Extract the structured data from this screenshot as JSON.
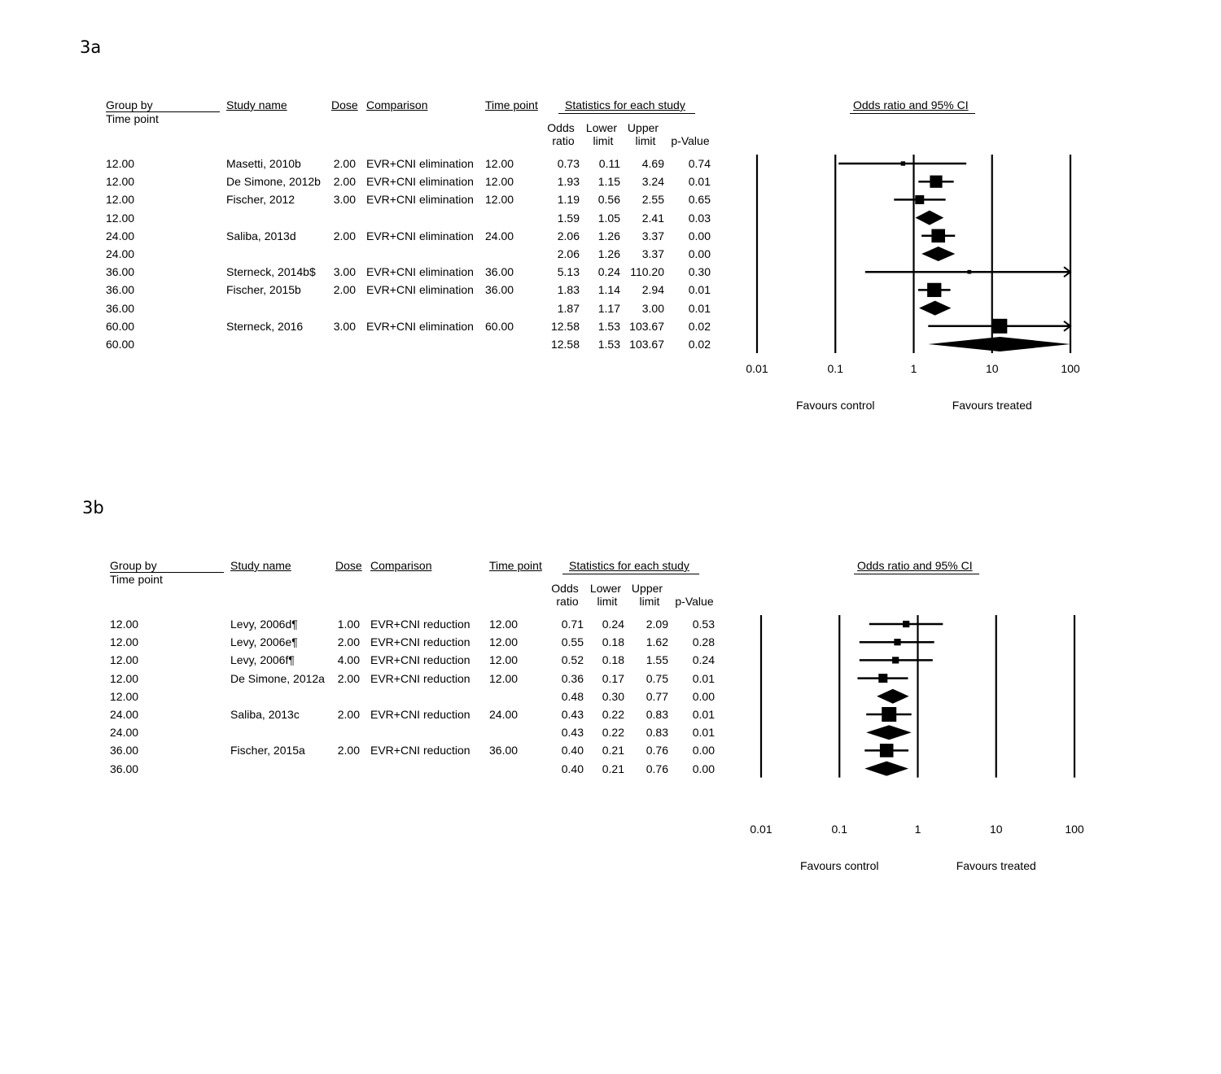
{
  "chart_data": [
    {
      "type": "forest",
      "panel_label": "3a",
      "headers": {
        "group_by": "Group by",
        "time_point_sub": "Time point",
        "study_name": "Study name",
        "dose": "Dose",
        "comparison": "Comparison",
        "time_point": "Time point",
        "stats": "Statistics for each study",
        "odds": [
          "Odds",
          "ratio"
        ],
        "lower": [
          "Lower",
          "limit"
        ],
        "upper": [
          "Upper",
          "limit"
        ],
        "pvalue": "p-Value",
        "plot_title": "Odds ratio and 95% CI"
      },
      "x_scale": "log",
      "xlim": [
        0.01,
        100
      ],
      "x_ticks": [
        "0.01",
        "0.1",
        "1",
        "10",
        "100"
      ],
      "favours_left": "Favours control",
      "favours_right": "Favours treated",
      "rows": [
        {
          "group": "12.00",
          "study": "Masetti, 2010b",
          "dose": "2.00",
          "comparison": "EVR+CNI elimination",
          "tp": "12.00",
          "or": "0.73",
          "ll": "0.11",
          "ul": "4.69",
          "p": "0.74",
          "kind": "study",
          "weight": 0.1
        },
        {
          "group": "12.00",
          "study": "De Simone, 2012b",
          "dose": "2.00",
          "comparison": "EVR+CNI elimination",
          "tp": "12.00",
          "or": "1.93",
          "ll": "1.15",
          "ul": "3.24",
          "p": "0.01",
          "kind": "study",
          "weight": 0.8
        },
        {
          "group": "12.00",
          "study": "Fischer, 2012",
          "dose": "3.00",
          "comparison": "EVR+CNI elimination",
          "tp": "12.00",
          "or": "1.19",
          "ll": "0.56",
          "ul": "2.55",
          "p": "0.65",
          "kind": "study",
          "weight": 0.5
        },
        {
          "group": "12.00",
          "study": "",
          "dose": "",
          "comparison": "",
          "tp": "",
          "or": "1.59",
          "ll": "1.05",
          "ul": "2.41",
          "p": "0.03",
          "kind": "summary"
        },
        {
          "group": "24.00",
          "study": "Saliba, 2013d",
          "dose": "2.00",
          "comparison": "EVR+CNI elimination",
          "tp": "24.00",
          "or": "2.06",
          "ll": "1.26",
          "ul": "3.37",
          "p": "0.00",
          "kind": "study",
          "weight": 0.9
        },
        {
          "group": "24.00",
          "study": "",
          "dose": "",
          "comparison": "",
          "tp": "",
          "or": "2.06",
          "ll": "1.26",
          "ul": "3.37",
          "p": "0.00",
          "kind": "summary"
        },
        {
          "group": "36.00",
          "study": "Sterneck, 2014b$",
          "dose": "3.00",
          "comparison": "EVR+CNI elimination",
          "tp": "36.00",
          "or": "5.13",
          "ll": "0.24",
          "ul": "110.20",
          "p": "0.30",
          "kind": "study",
          "weight": 0.05,
          "arrow_right": true
        },
        {
          "group": "36.00",
          "study": "Fischer, 2015b",
          "dose": "2.00",
          "comparison": "EVR+CNI elimination",
          "tp": "36.00",
          "or": "1.83",
          "ll": "1.14",
          "ul": "2.94",
          "p": "0.01",
          "kind": "study",
          "weight": 0.95
        },
        {
          "group": "36.00",
          "study": "",
          "dose": "",
          "comparison": "",
          "tp": "",
          "or": "1.87",
          "ll": "1.17",
          "ul": "3.00",
          "p": "0.01",
          "kind": "summary"
        },
        {
          "group": "60.00",
          "study": "Sterneck, 2016",
          "dose": "3.00",
          "comparison": "EVR+CNI elimination",
          "tp": "60.00",
          "or": "12.58",
          "ll": "1.53",
          "ul": "103.67",
          "p": "0.02",
          "kind": "study",
          "weight": 1.0,
          "arrow_right": true
        },
        {
          "group": "60.00",
          "study": "",
          "dose": "",
          "comparison": "",
          "tp": "",
          "or": "12.58",
          "ll": "1.53",
          "ul": "103.67",
          "p": "0.02",
          "kind": "summary",
          "clip_right": true
        }
      ]
    },
    {
      "type": "forest",
      "panel_label": "3b",
      "headers": {
        "group_by": "Group by",
        "time_point_sub": "Time point",
        "study_name": "Study name",
        "dose": "Dose",
        "comparison": "Comparison",
        "time_point": "Time point",
        "stats": "Statistics for each study",
        "odds": [
          "Odds",
          "ratio"
        ],
        "lower": [
          "Lower",
          "limit"
        ],
        "upper": [
          "Upper",
          "limit"
        ],
        "pvalue": "p-Value",
        "plot_title": "Odds ratio and 95% CI"
      },
      "x_scale": "log",
      "xlim": [
        0.01,
        100
      ],
      "x_ticks": [
        "0.01",
        "0.1",
        "1",
        "10",
        "100"
      ],
      "favours_left": "Favours control",
      "favours_right": "Favours treated",
      "rows": [
        {
          "group": "12.00",
          "study": "Levy, 2006d¶",
          "dose": "1.00",
          "comparison": "EVR+CNI reduction",
          "tp": "12.00",
          "or": "0.71",
          "ll": "0.24",
          "ul": "2.09",
          "p": "0.53",
          "kind": "study",
          "weight": 0.3
        },
        {
          "group": "12.00",
          "study": "Levy, 2006e¶",
          "dose": "2.00",
          "comparison": "EVR+CNI reduction",
          "tp": "12.00",
          "or": "0.55",
          "ll": "0.18",
          "ul": "1.62",
          "p": "0.28",
          "kind": "study",
          "weight": 0.3
        },
        {
          "group": "12.00",
          "study": "Levy, 2006f¶",
          "dose": "4.00",
          "comparison": "EVR+CNI reduction",
          "tp": "12.00",
          "or": "0.52",
          "ll": "0.18",
          "ul": "1.55",
          "p": "0.24",
          "kind": "study",
          "weight": 0.3
        },
        {
          "group": "12.00",
          "study": "De Simone, 2012a",
          "dose": "2.00",
          "comparison": "EVR+CNI reduction",
          "tp": "12.00",
          "or": "0.36",
          "ll": "0.17",
          "ul": "0.75",
          "p": "0.01",
          "kind": "study",
          "weight": 0.5
        },
        {
          "group": "12.00",
          "study": "",
          "dose": "",
          "comparison": "",
          "tp": "",
          "or": "0.48",
          "ll": "0.30",
          "ul": "0.77",
          "p": "0.00",
          "kind": "summary"
        },
        {
          "group": "24.00",
          "study": "Saliba, 2013c",
          "dose": "2.00",
          "comparison": "EVR+CNI reduction",
          "tp": "24.00",
          "or": "0.43",
          "ll": "0.22",
          "ul": "0.83",
          "p": "0.01",
          "kind": "study",
          "weight": 1.0
        },
        {
          "group": "24.00",
          "study": "",
          "dose": "",
          "comparison": "",
          "tp": "",
          "or": "0.43",
          "ll": "0.22",
          "ul": "0.83",
          "p": "0.01",
          "kind": "summary"
        },
        {
          "group": "36.00",
          "study": "Fischer, 2015a",
          "dose": "2.00",
          "comparison": "EVR+CNI reduction",
          "tp": "36.00",
          "or": "0.40",
          "ll": "0.21",
          "ul": "0.76",
          "p": "0.00",
          "kind": "study",
          "weight": 0.9
        },
        {
          "group": "36.00",
          "study": "",
          "dose": "",
          "comparison": "",
          "tp": "",
          "or": "0.40",
          "ll": "0.21",
          "ul": "0.76",
          "p": "0.00",
          "kind": "summary"
        }
      ]
    }
  ]
}
